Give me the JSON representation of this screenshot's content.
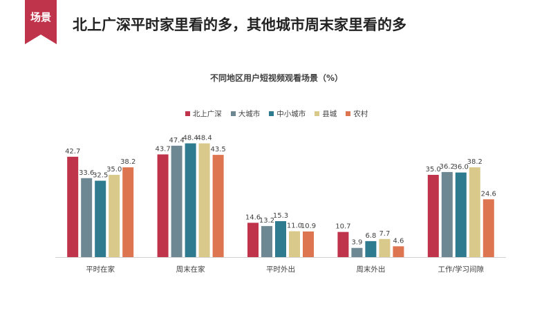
{
  "header": {
    "badge": "场景",
    "title": "北上广深平时家里看的多，其他城市周末家里看的多"
  },
  "colors": {
    "accent": "#C0344B"
  },
  "chart_data": {
    "type": "bar",
    "title": "不同地区用户短视频观看场景（%）",
    "xlabel": "",
    "ylabel": "",
    "ylim": [
      0,
      55
    ],
    "grid": false,
    "legend_position": "top-center",
    "categories": [
      "平时在家",
      "周末在家",
      "平时外出",
      "周末外出",
      "工作/学习间隙"
    ],
    "series": [
      {
        "name": "北上广深",
        "color": "#C0344B",
        "values": [
          42.7,
          43.7,
          14.6,
          10.7,
          35.0
        ]
      },
      {
        "name": "大城市",
        "color": "#6D8893",
        "values": [
          33.6,
          47.4,
          13.2,
          3.9,
          36.2
        ]
      },
      {
        "name": "中小城市",
        "color": "#2E7A8E",
        "values": [
          32.5,
          48.4,
          15.3,
          6.8,
          36.0
        ]
      },
      {
        "name": "县城",
        "color": "#D9C98A",
        "values": [
          35.0,
          48.4,
          11.0,
          7.7,
          38.2
        ]
      },
      {
        "name": "农村",
        "color": "#DD7551",
        "values": [
          38.2,
          43.5,
          10.9,
          4.6,
          24.6
        ]
      }
    ]
  }
}
